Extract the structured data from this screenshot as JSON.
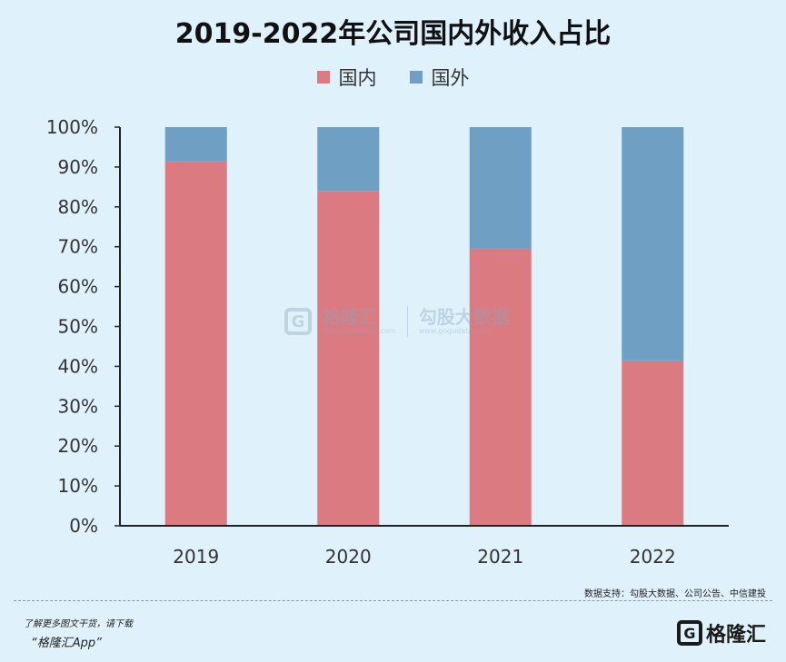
{
  "colors": {
    "background": "#dff1fb",
    "domestic": "#db7b81",
    "overseas": "#6f9fc2",
    "axis": "#222222"
  },
  "chart_data": {
    "type": "bar",
    "stacked": true,
    "title": "2019-2022年公司国内外收入占比",
    "categories": [
      "2019",
      "2020",
      "2021",
      "2022"
    ],
    "series": [
      {
        "name": "国内",
        "color": "#db7b81",
        "values": [
          91.5,
          84,
          69.5,
          41.5
        ]
      },
      {
        "name": "国外",
        "color": "#6f9fc2",
        "values": [
          8.5,
          16,
          30.5,
          58.5
        ]
      }
    ],
    "yticks": [
      "0%",
      "10%",
      "20%",
      "30%",
      "40%",
      "50%",
      "60%",
      "70%",
      "80%",
      "90%",
      "100%"
    ],
    "ylim": [
      0,
      100
    ],
    "grid": false,
    "legend_position": "top-center"
  },
  "watermark": {
    "brand_name": "格隆汇",
    "brand_url": "www.gelonghui.com",
    "data_name": "勾股大数据",
    "data_url": "www.gogudata.com",
    "icon": "g-logo-icon"
  },
  "source_note": "数据支持：勾股大数据、公司公告、中信建投",
  "footer": {
    "line1": "了解更多图文干货，请下载",
    "line2": "“格隆汇App”",
    "logo_name": "格隆汇",
    "logo_icon": "g-logo-icon"
  }
}
